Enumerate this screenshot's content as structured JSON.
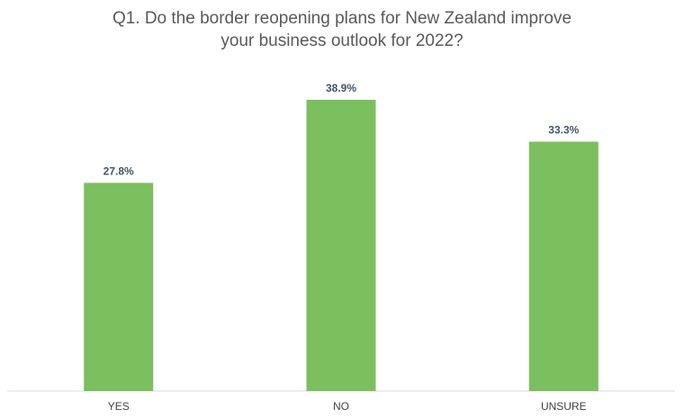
{
  "chart_data": {
    "type": "bar",
    "title_line1": "Q1. Do the border reopening plans for New Zealand improve",
    "title_line2": "your business outlook for 2022?",
    "categories": [
      "YES",
      "NO",
      "UNSURE"
    ],
    "values": [
      27.8,
      38.9,
      33.3
    ],
    "value_labels": [
      "27.8%",
      "38.9%",
      "33.3%"
    ],
    "ylim": [
      0,
      40
    ],
    "grid": false,
    "legend": "none",
    "colors": {
      "bar": "#7cbf5f",
      "axis": "#d9d9d9",
      "title": "#595959",
      "value_label": "#44546a",
      "category_label": "#404040"
    }
  }
}
